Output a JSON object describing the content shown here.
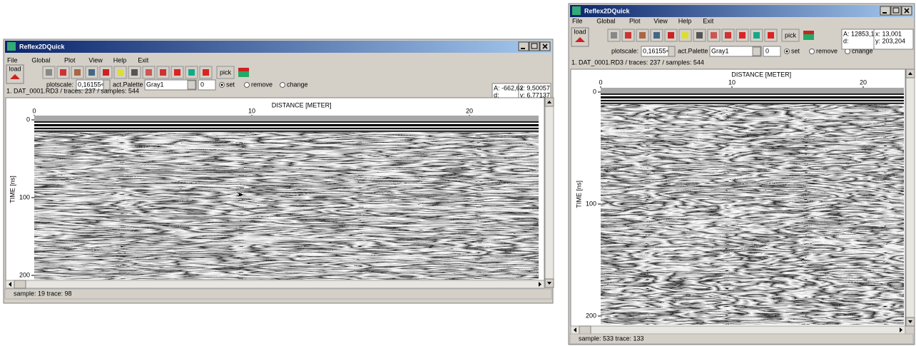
{
  "windows": [
    {
      "title": "Reflex2DQuick",
      "menu": [
        "File",
        "Global",
        "Plot",
        "View",
        "Help",
        "Exit"
      ],
      "toolbar": {
        "load": "load",
        "plotscale_label": "plotscale:",
        "plotscale": "0,16155<",
        "palette_label": "act.Palette",
        "palette": "Gray1",
        "spin": "0",
        "radio": [
          "set",
          "remove",
          "change"
        ],
        "pick": "pick"
      },
      "readout": {
        "a": "A: -662,62",
        "d": "d:",
        "x": "x: 9,50057",
        "y": "y: 6,77137"
      },
      "file_info": "1. DAT_0001.RD3 / traces: 237 / samples: 544",
      "x_axis": {
        "label": "DISTANCE [METER]",
        "ticks": [
          0,
          10,
          20
        ]
      },
      "y_axis": {
        "label": "TIME [ns]",
        "ticks": [
          0,
          100,
          200
        ]
      },
      "status": "sample: 19 trace: 98"
    },
    {
      "title": "Reflex2DQuick",
      "menu": [
        "File",
        "Global",
        "Plot",
        "View",
        "Help",
        "Exit"
      ],
      "toolbar": {
        "load": "load",
        "plotscale_label": "plotscale:",
        "plotscale": "0,16155<",
        "palette_label": "act.Palette",
        "palette": "Gray1",
        "spin": "0",
        "radio": [
          "set",
          "remove",
          "change"
        ],
        "pick": "pick"
      },
      "readout": {
        "a": "A: 12853,1",
        "d": "d:",
        "x": "x: 13,001",
        "y": "y: 203,204"
      },
      "file_info": "1. DAT_0001.RD3 / traces: 237 / samples: 544",
      "x_axis": {
        "label": "DISTANCE [METER]",
        "ticks": [
          0,
          10,
          20
        ]
      },
      "y_axis": {
        "label": "TIME [ns]",
        "ticks": [
          0,
          100,
          200
        ]
      },
      "status": "sample: 533 trace: 133"
    }
  ]
}
